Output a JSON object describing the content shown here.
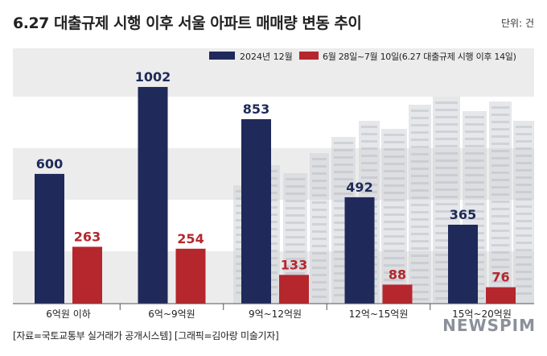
{
  "header": {
    "title": "6.27 대출규제 시행 이후 서울 아파트 매매량 변동 추이",
    "unit": "단위: 건"
  },
  "footer": {
    "source": "[자료=국토교통부 실거래가 공개시스템] [그래픽=김아랑 미술기자]",
    "watermark": "NEWSPIM"
  },
  "colors": {
    "series1": "#1f2a5a",
    "series2": "#b5272d",
    "band": "#ececec"
  },
  "chart_data": {
    "type": "bar",
    "title": "6.27 대출규제 시행 이후 서울 아파트 매매량 변동 추이",
    "categories": [
      "6억원 이하",
      "6억~9억원",
      "9억~12억원",
      "12억~15억원",
      "15억~20억원"
    ],
    "series": [
      {
        "name": "2024년 12월",
        "values": [
          600,
          1002,
          853,
          492,
          365
        ]
      },
      {
        "name": "6월 28일~7월 10일(6.27 대출규제 시행 이후 14일)",
        "values": [
          263,
          254,
          133,
          88,
          76
        ]
      }
    ],
    "ylim": [
      0,
      1100
    ],
    "xlabel": "",
    "ylabel": "",
    "legend": "top-right",
    "grid": false
  }
}
